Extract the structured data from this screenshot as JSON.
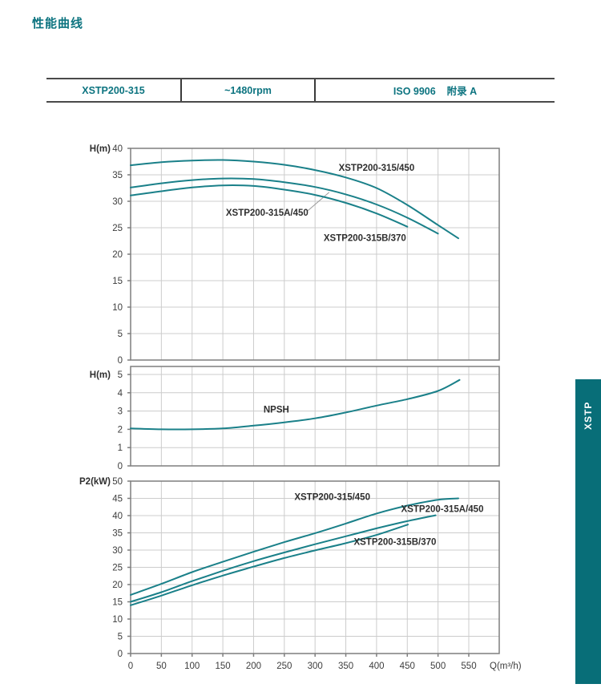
{
  "page": {
    "title": "性能曲线",
    "tab_label": "XSTP"
  },
  "info_table": {
    "cells": {
      "model": "XSTP200-315",
      "speed": "~1480rpm",
      "standard": "ISO 9906    附录 A"
    }
  },
  "colors": {
    "accent_text": "#0d7480",
    "curve": "#1a8089",
    "tab_bg": "#086e78",
    "grid": "#cccccc",
    "border": "#7e7e7e",
    "tick_text": "#3d3d3d",
    "label_text": "#2e2e2e",
    "leader": "#9a9a9a"
  },
  "chart_data": [
    {
      "type": "line",
      "title": "Head curves",
      "ylabel": "H(m)",
      "xlabel": "",
      "ylim": [
        0,
        40
      ],
      "ystep": 5,
      "xlim": [
        0,
        600
      ],
      "xtick_max": 550,
      "xstep": 50,
      "show_x_tick_labels": false,
      "grid": true,
      "series": [
        {
          "name": "XSTP200-315/450",
          "points": [
            [
              0,
              36.8
            ],
            [
              50,
              37.4
            ],
            [
              100,
              37.7
            ],
            [
              150,
              37.8
            ],
            [
              200,
              37.5
            ],
            [
              250,
              36.9
            ],
            [
              300,
              35.9
            ],
            [
              350,
              34.5
            ],
            [
              400,
              32.5
            ],
            [
              450,
              29.3
            ],
            [
              500,
              25.5
            ],
            [
              533,
              23.0
            ]
          ]
        },
        {
          "name": "XSTP200-315A/450",
          "points": [
            [
              0,
              32.6
            ],
            [
              50,
              33.4
            ],
            [
              100,
              34.0
            ],
            [
              150,
              34.3
            ],
            [
              200,
              34.2
            ],
            [
              250,
              33.6
            ],
            [
              300,
              32.7
            ],
            [
              350,
              31.3
            ],
            [
              400,
              29.4
            ],
            [
              450,
              26.9
            ],
            [
              500,
              23.9
            ]
          ]
        },
        {
          "name": "XSTP200-315B/370",
          "points": [
            [
              0,
              31.1
            ],
            [
              50,
              31.9
            ],
            [
              100,
              32.6
            ],
            [
              150,
              33.0
            ],
            [
              200,
              32.9
            ],
            [
              250,
              32.2
            ],
            [
              300,
              31.2
            ],
            [
              350,
              29.7
            ],
            [
              400,
              27.7
            ],
            [
              450,
              25.2
            ]
          ]
        }
      ],
      "annotations": [
        {
          "text": "XSTP200-315/450",
          "q": 400,
          "v": 36.4,
          "anchor": "middle"
        },
        {
          "text": "XSTP200-315A/450",
          "q": 222,
          "v": 27.9,
          "anchor": "middle"
        },
        {
          "text": "XSTP200-315B/370",
          "q": 381,
          "v": 23.1,
          "anchor": "middle"
        }
      ],
      "leader_lines": [
        {
          "q1": 288,
          "v1": 28.2,
          "q2": 323,
          "v2": 31.7
        }
      ]
    },
    {
      "type": "line",
      "title": "NPSH curve",
      "ylabel": "H(m)",
      "xlabel": "",
      "ylim": [
        0,
        5
      ],
      "ystep": 1,
      "xlim": [
        0,
        600
      ],
      "xtick_max": 550,
      "xstep": 50,
      "show_x_tick_labels": false,
      "grid": true,
      "series": [
        {
          "name": "NPSH",
          "points": [
            [
              0,
              2.05
            ],
            [
              50,
              2.0
            ],
            [
              100,
              2.0
            ],
            [
              150,
              2.05
            ],
            [
              200,
              2.2
            ],
            [
              250,
              2.38
            ],
            [
              300,
              2.6
            ],
            [
              350,
              2.92
            ],
            [
              400,
              3.3
            ],
            [
              450,
              3.65
            ],
            [
              500,
              4.1
            ],
            [
              535,
              4.7
            ]
          ]
        }
      ],
      "annotations": [
        {
          "text": "NPSH",
          "q": 237,
          "v": 3.1,
          "anchor": "middle"
        }
      ],
      "leader_lines": []
    },
    {
      "type": "line",
      "title": "Power curves",
      "ylabel": "P2(kW)",
      "xlabel": "Q(m³/h)",
      "ylim": [
        0,
        50
      ],
      "ystep": 5,
      "xlim": [
        0,
        600
      ],
      "xtick_max": 550,
      "xstep": 50,
      "show_x_tick_labels": true,
      "grid": true,
      "series": [
        {
          "name": "XSTP200-315/450",
          "points": [
            [
              0,
              17
            ],
            [
              50,
              20.2
            ],
            [
              100,
              23.6
            ],
            [
              150,
              26.6
            ],
            [
              200,
              29.5
            ],
            [
              250,
              32.3
            ],
            [
              300,
              34.9
            ],
            [
              350,
              37.7
            ],
            [
              400,
              40.6
            ],
            [
              450,
              42.9
            ],
            [
              500,
              44.6
            ],
            [
              533,
              45.0
            ]
          ]
        },
        {
          "name": "XSTP200-315A/450",
          "points": [
            [
              0,
              15
            ],
            [
              50,
              17.8
            ],
            [
              100,
              21
            ],
            [
              150,
              24
            ],
            [
              200,
              26.8
            ],
            [
              250,
              29.3
            ],
            [
              300,
              31.7
            ],
            [
              350,
              34
            ],
            [
              400,
              36.3
            ],
            [
              450,
              38.4
            ],
            [
              496,
              40.1
            ]
          ]
        },
        {
          "name": "XSTP200-315B/370",
          "points": [
            [
              0,
              14
            ],
            [
              50,
              16.8
            ],
            [
              100,
              19.8
            ],
            [
              150,
              22.6
            ],
            [
              200,
              25.2
            ],
            [
              250,
              27.7
            ],
            [
              300,
              29.9
            ],
            [
              350,
              32
            ],
            [
              400,
              34.4
            ],
            [
              451,
              37.4
            ]
          ]
        }
      ],
      "annotations": [
        {
          "text": "XSTP200-315/450",
          "q": 328,
          "v": 45.5,
          "anchor": "middle"
        },
        {
          "text": "XSTP200-315A/450",
          "q": 507,
          "v": 42.0,
          "anchor": "middle"
        },
        {
          "text": "XSTP200-315B/370",
          "q": 430,
          "v": 32.5,
          "anchor": "middle"
        }
      ],
      "leader_lines": []
    }
  ]
}
